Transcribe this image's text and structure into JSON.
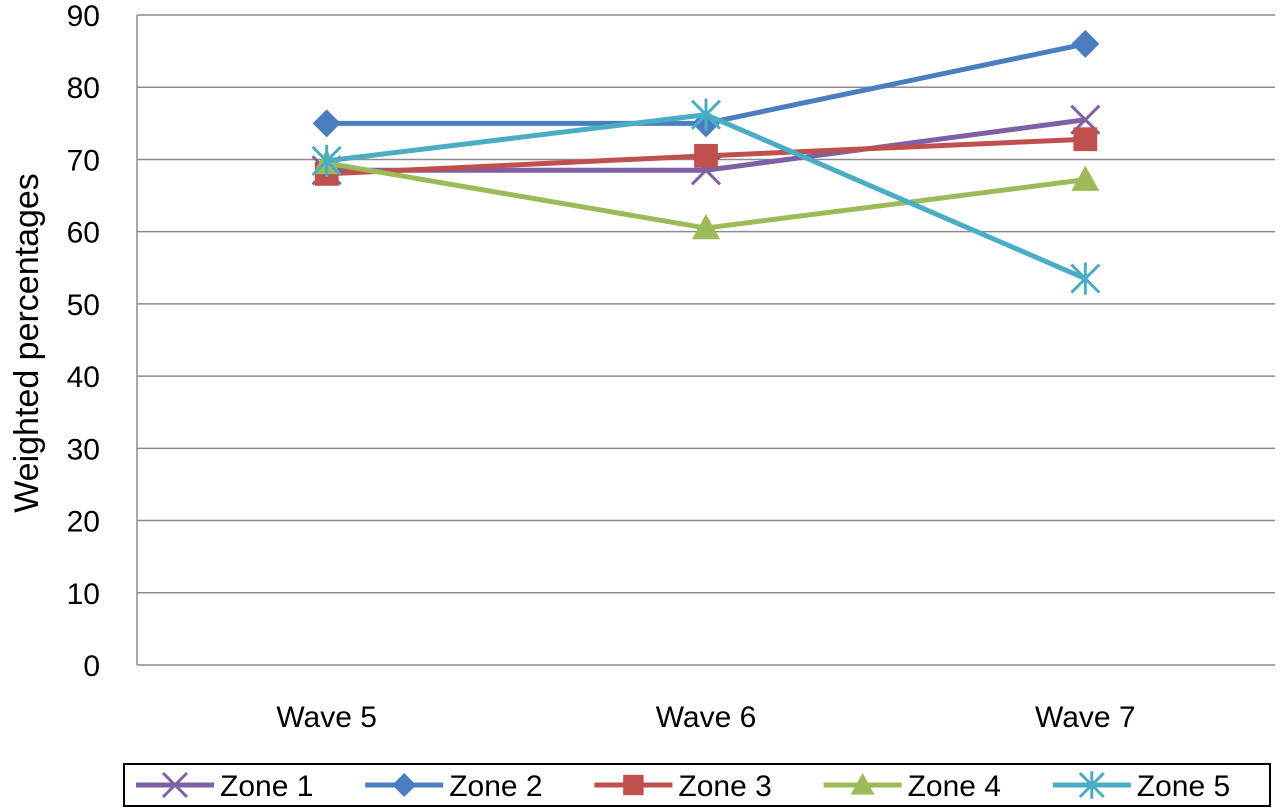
{
  "chart_data": {
    "type": "line",
    "title": "",
    "xlabel": "",
    "ylabel": "Weighted  percentages",
    "categories": [
      "Wave 5",
      "Wave 6",
      "Wave 7"
    ],
    "ylim": [
      0,
      90
    ],
    "yticks": [
      0,
      10,
      20,
      30,
      40,
      50,
      60,
      70,
      80,
      90
    ],
    "grid": "horizontal",
    "legend_position": "bottom",
    "series": [
      {
        "name": "Zone 1",
        "values": [
          68.5,
          68.5,
          75.5
        ],
        "color": "#7F5FA6",
        "marker": "x"
      },
      {
        "name": "Zone 2",
        "values": [
          75,
          75,
          86
        ],
        "color": "#4A7EBF",
        "marker": "diamond"
      },
      {
        "name": "Zone 3",
        "values": [
          68,
          70.5,
          72.8
        ],
        "color": "#C0504D",
        "marker": "square"
      },
      {
        "name": "Zone 4",
        "values": [
          69.5,
          60.5,
          67.2
        ],
        "color": "#9BBB59",
        "marker": "triangle"
      },
      {
        "name": "Zone 5",
        "values": [
          69.8,
          76.2,
          53.5
        ],
        "color": "#4BACC6",
        "marker": "asterisk"
      }
    ]
  }
}
